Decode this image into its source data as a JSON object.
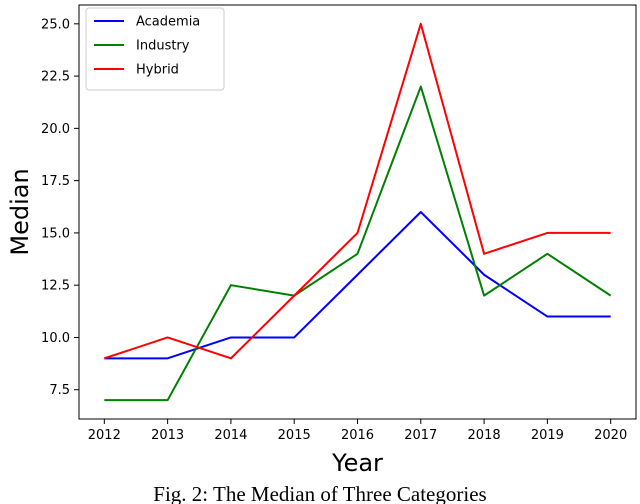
{
  "caption": "Fig. 2: The Median of Three Categories",
  "chart_data": {
    "type": "line",
    "title": "",
    "xlabel": "Year",
    "ylabel": "Median",
    "x": [
      2012,
      2013,
      2014,
      2015,
      2016,
      2017,
      2018,
      2019,
      2020
    ],
    "xticks": [
      "2012",
      "2013",
      "2014",
      "2015",
      "2016",
      "2017",
      "2018",
      "2019",
      "2020"
    ],
    "yticks": [
      "7.5",
      "10.0",
      "12.5",
      "15.0",
      "17.5",
      "20.0",
      "22.5",
      "25.0"
    ],
    "ytick_values": [
      7.5,
      10.0,
      12.5,
      15.0,
      17.5,
      20.0,
      22.5,
      25.0
    ],
    "xlim": [
      2011.6,
      2020.4
    ],
    "ylim": [
      6.1,
      25.9
    ],
    "grid": false,
    "legend_position": "top-left",
    "series": [
      {
        "name": "Academia",
        "color": "#0000ff",
        "values": [
          9,
          9,
          10,
          10,
          13,
          16,
          13,
          11,
          11
        ]
      },
      {
        "name": "Industry",
        "color": "#008000",
        "values": [
          7,
          7,
          12.5,
          12,
          14,
          22,
          12,
          14,
          12
        ]
      },
      {
        "name": "Hybrid",
        "color": "#ff0000",
        "values": [
          9,
          10,
          9,
          12,
          15,
          25,
          14,
          15,
          15
        ]
      }
    ]
  }
}
